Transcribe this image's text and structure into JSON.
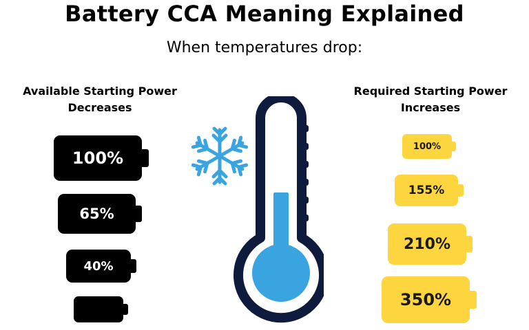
{
  "title": "Battery CCA Meaning Explained",
  "subtitle": "When temperatures drop:",
  "available": {
    "heading_line1": "Available Starting Power",
    "heading_line2": "Decreases",
    "batteries": [
      {
        "label": "100%"
      },
      {
        "label": "65%"
      },
      {
        "label": "40%"
      },
      {
        "label": ""
      }
    ]
  },
  "required": {
    "heading_line1": "Required Starting Power",
    "heading_line2": "Increases",
    "batteries": [
      {
        "label": "100%"
      },
      {
        "label": "155%"
      },
      {
        "label": "210%"
      },
      {
        "label": "350%"
      }
    ]
  },
  "colors": {
    "available_battery": "#000000",
    "required_battery": "#fcd53f",
    "thermometer_outline": "#0e1b3d",
    "mercury": "#3aa4e0",
    "snowflake": "#3aa4e0"
  },
  "icons": {
    "snowflake": "snowflake-icon",
    "thermometer": "thermometer-icon"
  }
}
